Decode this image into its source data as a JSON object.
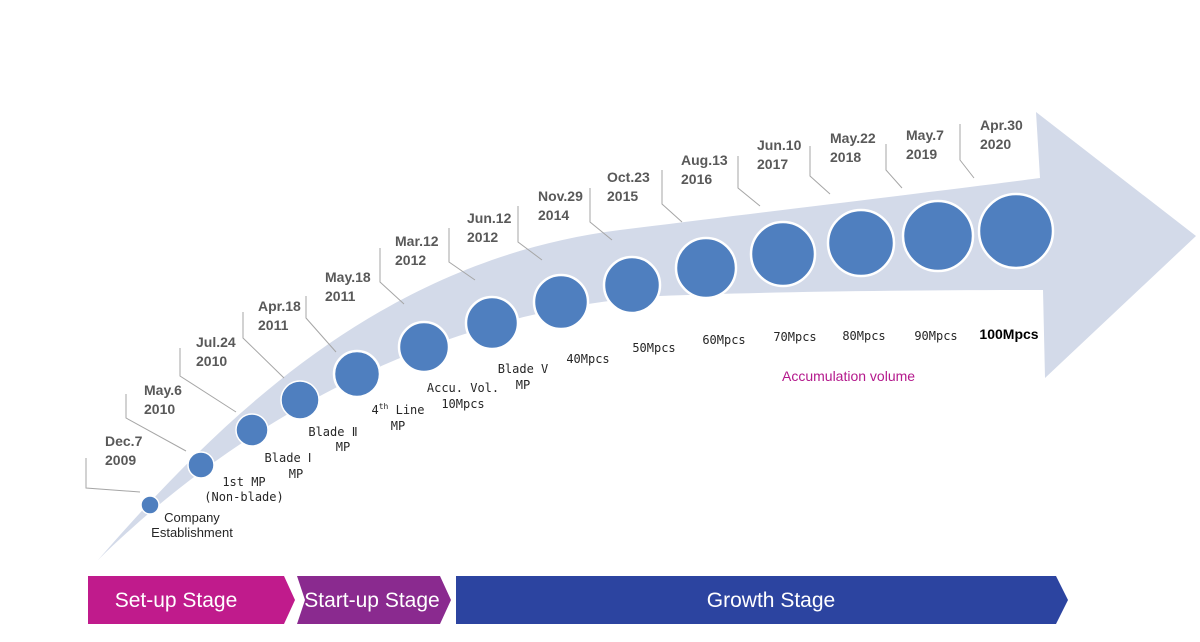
{
  "milestones": [
    {
      "date": [
        "Dec.7",
        "2009"
      ],
      "label": [
        "Company",
        "Establishment"
      ]
    },
    {
      "date": [
        "May.6",
        "2010"
      ],
      "label": [
        "1st MP",
        "(Non-blade)"
      ]
    },
    {
      "date": [
        "Jul.24",
        "2010"
      ],
      "label": [
        "Blade Ⅰ",
        "MP"
      ]
    },
    {
      "date": [
        "Apr.18",
        "2011"
      ],
      "label": [
        "Blade Ⅱ",
        "MP"
      ]
    },
    {
      "date": [
        "May.18",
        "2011"
      ],
      "label": [
        "4th Line",
        "MP"
      ]
    },
    {
      "date": [
        "Mar.12",
        "2012"
      ],
      "label": [
        "Accu. Vol.",
        "10Mpcs"
      ]
    },
    {
      "date": [
        "Jun.12",
        "2012"
      ],
      "label": [
        "Blade V",
        "MP"
      ]
    },
    {
      "date": [
        "Nov.29",
        "2014"
      ],
      "label": [
        "40Mpcs"
      ]
    },
    {
      "date": [
        "Oct.23",
        "2015"
      ],
      "label": [
        "50Mpcs"
      ]
    },
    {
      "date": [
        "Aug.13",
        "2016"
      ],
      "label": [
        "60Mpcs"
      ]
    },
    {
      "date": [
        "Jun.10",
        "2017"
      ],
      "label": [
        "70Mpcs"
      ]
    },
    {
      "date": [
        "May.22",
        "2018"
      ],
      "label": [
        "80Mpcs"
      ]
    },
    {
      "date": [
        "May.7",
        "2019"
      ],
      "label": [
        "90Mpcs"
      ]
    },
    {
      "date": [
        "Apr.30",
        "2020"
      ],
      "label": [
        "100Mpcs"
      ]
    }
  ],
  "superscript": "th",
  "accumulation_label": "Accumulation volume",
  "stages": [
    {
      "label": "Set-up Stage",
      "color": "#c01b8c"
    },
    {
      "label": "Start-up Stage",
      "color": "#8a2a8f"
    },
    {
      "label": "Growth Stage",
      "color": "#2c44a0"
    }
  ],
  "colors": {
    "arrow": "#d3dae9",
    "dot": "#4f7fbf",
    "dot_stroke": "#ffffff",
    "bracket": "#a6a6a6",
    "accent": "#b4198c"
  }
}
